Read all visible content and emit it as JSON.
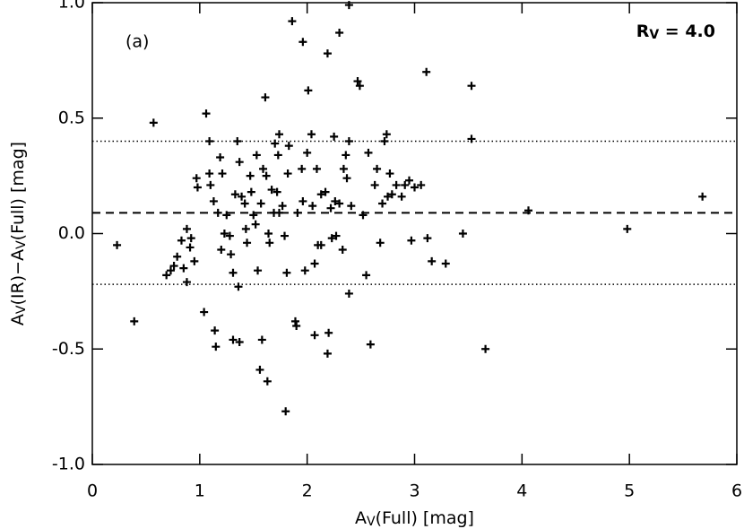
{
  "chart_data": {
    "type": "scatter",
    "annotation": "(a)",
    "rv_label": [
      {
        "text": "R"
      },
      {
        "text": "V",
        "sub": true
      },
      {
        "text": " = 4.0"
      }
    ],
    "xlabel": [
      {
        "text": "A"
      },
      {
        "text": "V",
        "sub": true
      },
      {
        "text": "(Full) [mag]"
      }
    ],
    "ylabel": [
      {
        "text": "A"
      },
      {
        "text": "V",
        "sub": true
      },
      {
        "text": "(IR)−A"
      },
      {
        "text": "V",
        "sub": true
      },
      {
        "text": "(Full) [mag]"
      }
    ],
    "xlim": [
      0,
      6
    ],
    "ylim": [
      -1.0,
      1.0
    ],
    "xticks": [
      0,
      1,
      2,
      3,
      4,
      5,
      6
    ],
    "yticks": [
      {
        "value": -1.0,
        "label": "-1.0"
      },
      {
        "value": -0.5,
        "label": "-0.5"
      },
      {
        "value": 0,
        "label": "0.0"
      },
      {
        "value": 0.5,
        "label": "0.5"
      },
      {
        "value": 1.0,
        "label": "1.0"
      }
    ],
    "reference_lines": [
      {
        "y": 0.09,
        "style": "dashed"
      },
      {
        "y": 0.4,
        "style": "dotted"
      },
      {
        "y": -0.22,
        "style": "dotted"
      }
    ],
    "color": "#000000",
    "x": [
      0.23,
      0.39,
      0.57,
      0.69,
      0.73,
      0.76,
      0.79,
      0.83,
      0.88,
      0.85,
      0.88,
      0.91,
      0.92,
      0.95,
      0.97,
      0.98,
      1.04,
      1.06,
      1.09,
      1.09,
      1.1,
      1.13,
      1.14,
      1.15,
      1.19,
      1.17,
      1.2,
      1.21,
      1.23,
      1.25,
      1.28,
      1.29,
      1.31,
      1.31,
      1.33,
      1.35,
      1.36,
      1.37,
      1.37,
      1.39,
      1.42,
      1.43,
      1.44,
      1.47,
      1.48,
      1.5,
      1.52,
      1.53,
      1.54,
      1.56,
      1.57,
      1.58,
      1.59,
      1.61,
      1.62,
      1.63,
      1.64,
      1.65,
      1.67,
      1.69,
      1.7,
      1.72,
      1.73,
      1.74,
      1.74,
      1.77,
      1.79,
      1.8,
      1.81,
      1.82,
      1.83,
      1.86,
      1.89,
      1.9,
      1.91,
      1.95,
      1.96,
      1.96,
      1.98,
      2.0,
      2.01,
      2.04,
      2.05,
      2.07,
      2.07,
      2.09,
      2.1,
      2.13,
      2.13,
      2.17,
      2.19,
      2.19,
      2.2,
      2.22,
      2.23,
      2.25,
      2.26,
      2.27,
      2.3,
      2.3,
      2.33,
      2.34,
      2.36,
      2.37,
      2.39,
      2.39,
      2.39,
      2.41,
      2.47,
      2.49,
      2.52,
      2.55,
      2.57,
      2.59,
      2.63,
      2.65,
      2.68,
      2.7,
      2.72,
      2.74,
      2.75,
      2.77,
      2.79,
      2.83,
      2.88,
      2.91,
      2.95,
      2.97,
      3.0,
      3.06,
      3.11,
      3.12,
      3.16,
      3.29,
      3.45,
      3.53,
      3.53,
      3.66,
      4.06,
      4.98,
      5.68
    ],
    "values": [
      -0.05,
      -0.38,
      0.48,
      -0.18,
      -0.16,
      -0.14,
      -0.1,
      -0.03,
      0.02,
      -0.15,
      -0.21,
      -0.06,
      -0.02,
      -0.12,
      0.24,
      0.2,
      -0.34,
      0.52,
      0.4,
      0.26,
      0.21,
      0.14,
      -0.42,
      -0.49,
      0.33,
      0.09,
      -0.07,
      0.26,
      0.0,
      0.08,
      -0.01,
      -0.09,
      -0.46,
      -0.17,
      0.17,
      0.4,
      -0.23,
      -0.47,
      0.31,
      0.16,
      0.13,
      0.02,
      -0.04,
      0.25,
      0.18,
      0.08,
      0.04,
      0.34,
      -0.16,
      -0.59,
      0.13,
      -0.46,
      0.28,
      0.59,
      0.25,
      -0.64,
      0.0,
      -0.04,
      0.19,
      0.09,
      0.39,
      0.18,
      0.34,
      0.09,
      0.43,
      0.12,
      -0.01,
      -0.77,
      -0.17,
      0.26,
      0.38,
      0.92,
      -0.38,
      -0.4,
      0.09,
      0.28,
      0.14,
      0.83,
      -0.16,
      0.35,
      0.62,
      0.43,
      0.12,
      -0.44,
      -0.13,
      0.28,
      -0.05,
      -0.05,
      0.17,
      0.18,
      -0.52,
      0.78,
      -0.43,
      0.11,
      -0.02,
      0.42,
      0.14,
      -0.01,
      0.13,
      0.87,
      -0.07,
      0.28,
      0.34,
      0.24,
      -0.26,
      0.99,
      0.4,
      0.12,
      0.66,
      0.64,
      0.08,
      -0.18,
      0.35,
      -0.48,
      0.21,
      0.28,
      -0.04,
      0.13,
      0.4,
      0.43,
      0.16,
      0.26,
      0.17,
      0.21,
      0.16,
      0.21,
      0.23,
      -0.03,
      0.2,
      0.21,
      0.7,
      -0.02,
      -0.12,
      -0.13,
      0.0,
      0.64,
      0.41,
      -0.5,
      0.1,
      0.02,
      0.16
    ]
  }
}
